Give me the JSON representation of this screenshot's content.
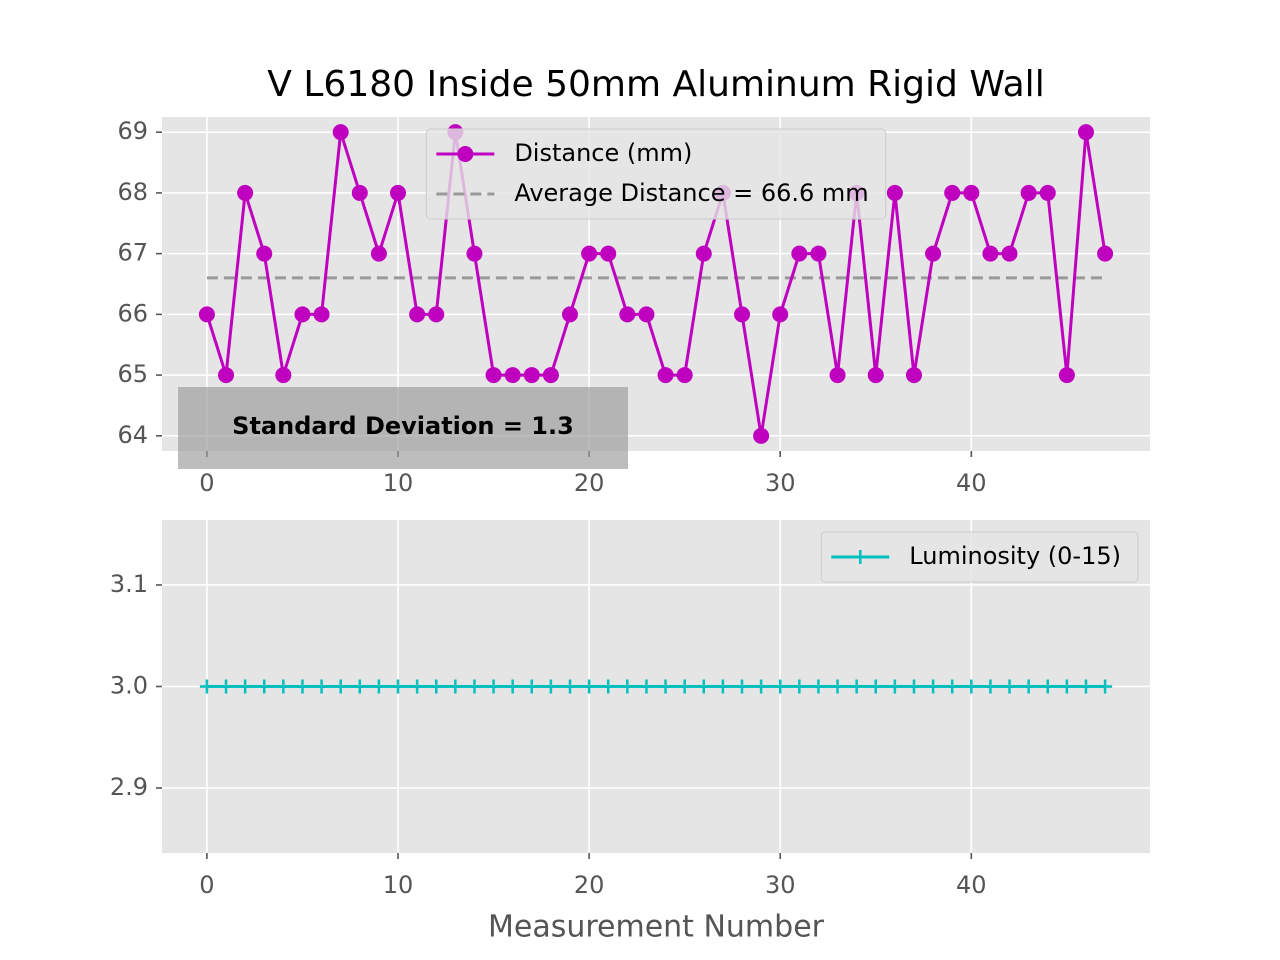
{
  "chart_data": [
    {
      "type": "line",
      "title": "V L6180 Inside 50mm Aluminum Rigid Wall",
      "x": [
        0,
        1,
        2,
        3,
        4,
        5,
        6,
        7,
        8,
        9,
        10,
        11,
        12,
        13,
        14,
        15,
        16,
        17,
        18,
        19,
        20,
        21,
        22,
        23,
        24,
        25,
        26,
        27,
        28,
        29,
        30,
        31,
        32,
        33,
        34,
        35,
        36,
        37,
        38,
        39,
        40,
        41,
        42,
        43,
        44,
        45,
        46,
        47
      ],
      "series": [
        {
          "name": "Distance (mm)",
          "color": "#bf00bf",
          "marker": "o",
          "values": [
            66,
            65,
            68,
            67,
            65,
            66,
            66,
            69,
            68,
            67,
            68,
            66,
            66,
            69,
            67,
            65,
            65,
            65,
            65,
            66,
            67,
            67,
            66,
            66,
            65,
            65,
            67,
            68,
            66,
            64,
            66,
            67,
            67,
            65,
            68,
            65,
            68,
            65,
            67,
            68,
            68,
            67,
            67,
            68,
            68,
            65,
            69,
            67
          ]
        }
      ],
      "hline": {
        "name": "Average Distance = 66.6 mm",
        "value": 66.6,
        "color": "#999999"
      },
      "annotation": "Standard Deviation = 1.3",
      "xlim": [
        -2.35,
        49.35
      ],
      "xticks": [
        0,
        10,
        20,
        30,
        40
      ],
      "ylim": [
        63.75,
        69.25
      ],
      "yticks": [
        64,
        65,
        66,
        67,
        68,
        69
      ],
      "grid": true,
      "legend": "upper center"
    },
    {
      "type": "line",
      "xlabel": "Measurement Number",
      "x": [
        0,
        1,
        2,
        3,
        4,
        5,
        6,
        7,
        8,
        9,
        10,
        11,
        12,
        13,
        14,
        15,
        16,
        17,
        18,
        19,
        20,
        21,
        22,
        23,
        24,
        25,
        26,
        27,
        28,
        29,
        30,
        31,
        32,
        33,
        34,
        35,
        36,
        37,
        38,
        39,
        40,
        41,
        42,
        43,
        44,
        45,
        46,
        47
      ],
      "series": [
        {
          "name": "Luminosity (0-15)",
          "color": "#00bfbf",
          "marker": "+",
          "values": [
            3,
            3,
            3,
            3,
            3,
            3,
            3,
            3,
            3,
            3,
            3,
            3,
            3,
            3,
            3,
            3,
            3,
            3,
            3,
            3,
            3,
            3,
            3,
            3,
            3,
            3,
            3,
            3,
            3,
            3,
            3,
            3,
            3,
            3,
            3,
            3,
            3,
            3,
            3,
            3,
            3,
            3,
            3,
            3,
            3,
            3,
            3,
            3
          ]
        }
      ],
      "xlim": [
        -2.35,
        49.35
      ],
      "xticks": [
        0,
        10,
        20,
        30,
        40
      ],
      "ylim": [
        2.836,
        3.164
      ],
      "yticks": [
        2.9,
        {
          "value": 3,
          "label": "3.0"
        },
        3.1
      ],
      "grid": true,
      "legend": "upper right"
    }
  ]
}
